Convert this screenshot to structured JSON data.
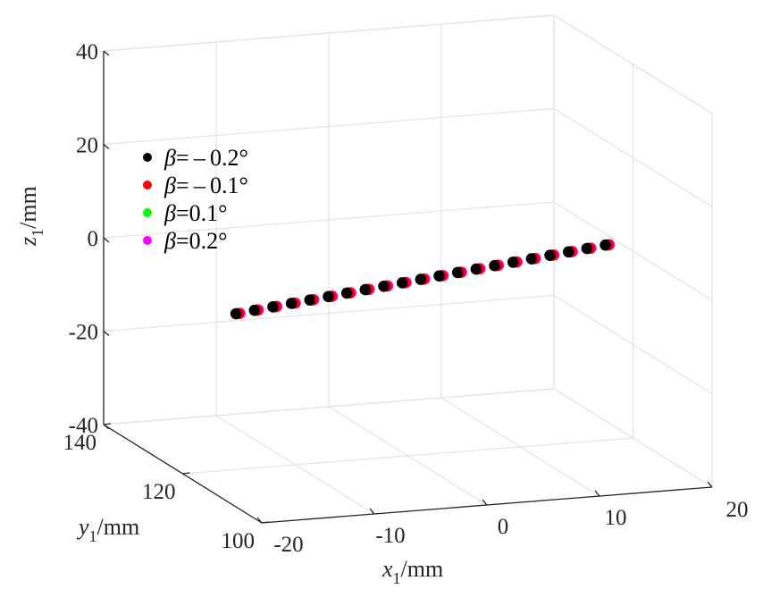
{
  "chart_data": {
    "type": "scatter3d",
    "title": "",
    "xlabel": {
      "var": "x",
      "sub": "1",
      "unit": "/mm"
    },
    "ylabel": {
      "var": "y",
      "sub": "1",
      "unit": "/mm"
    },
    "zlabel": {
      "var": "z",
      "sub": "1",
      "unit": "/mm"
    },
    "xlim": [
      -20,
      20
    ],
    "ylim": [
      100,
      140
    ],
    "zlim": [
      -40,
      40
    ],
    "xticks": [
      "-20",
      "-10",
      "0",
      "10",
      "20"
    ],
    "yticks": [
      "100",
      "120",
      "140"
    ],
    "zticks": [
      "-40",
      "-20",
      "0",
      "20",
      "40"
    ],
    "grid": true,
    "legend_position": "upper-left",
    "n_points": 21,
    "base": {
      "x_start": -19.2,
      "x_end": 18.6,
      "y_start": 108.8,
      "y_end": 123.0,
      "z": 0
    },
    "series": [
      {
        "name": "β=−0.2°",
        "prefix": "β",
        "value": "= – 0.2°",
        "color": "#000000",
        "x_offset": 0.0
      },
      {
        "name": "β=−0.1°",
        "prefix": "β",
        "value": "= – 0.1°",
        "color": "#ff0000",
        "x_offset": 0.25
      },
      {
        "name": "β=0.1°",
        "prefix": "β",
        "value": "=0.1°",
        "color": "#00ff00",
        "x_offset": 0.15
      },
      {
        "name": "β=0.2°",
        "prefix": "β",
        "value": "=0.2°",
        "color": "#ff00ff",
        "x_offset": 0.35
      }
    ]
  }
}
